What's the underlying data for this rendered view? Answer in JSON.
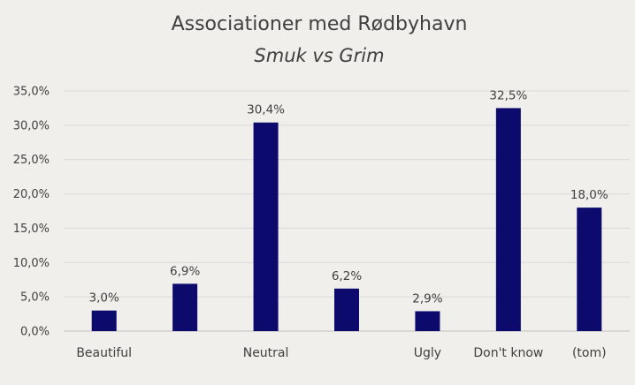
{
  "chart_data": {
    "type": "bar",
    "title": "Associationer med Rødbyhavn",
    "subtitle": "Smuk vs Grim",
    "categories": [
      "Beautiful",
      "",
      "Neutral",
      "",
      "Ugly",
      "Don't know",
      "(tom)"
    ],
    "values": [
      3.0,
      6.9,
      30.4,
      6.2,
      2.9,
      32.5,
      18.0
    ],
    "data_labels": [
      "3,0%",
      "6,9%",
      "30,4%",
      "6,2%",
      "2,9%",
      "32,5%",
      "18,0%"
    ],
    "yticks": [
      0,
      5,
      10,
      15,
      20,
      25,
      30,
      35
    ],
    "ytick_labels": [
      "0,0%",
      "5,0%",
      "10,0%",
      "15,0%",
      "20,0%",
      "25,0%",
      "30,0%",
      "35,0%"
    ],
    "ylim": [
      0,
      35
    ],
    "grid": true,
    "legend": "none",
    "bar_color": "#0d0a6e"
  }
}
